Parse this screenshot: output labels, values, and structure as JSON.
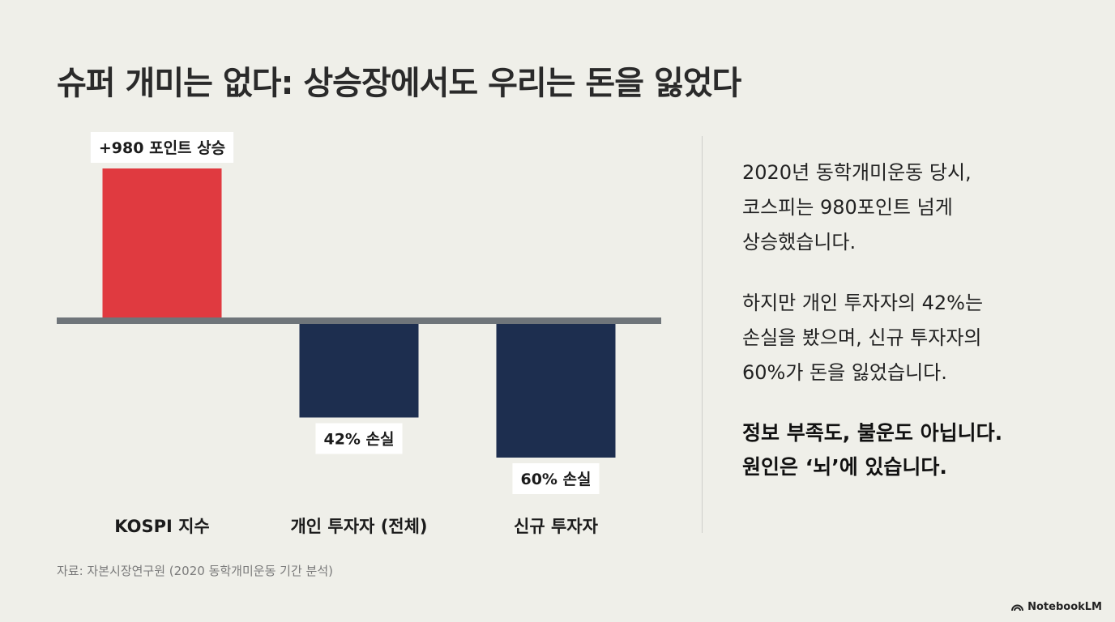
{
  "title": "슈퍼 개미는 없다: 상승장에서도 우리는 돈을 잃었다",
  "chart_data": {
    "type": "bar",
    "categories": [
      "KOSPI 지수",
      "개인 투자자 (전체)",
      "신규 투자자"
    ],
    "values": [
      980,
      -42,
      -60
    ],
    "data_labels": [
      "+980 포인트 상승",
      "42% 손실",
      "60% 손실"
    ],
    "colors": [
      "#e03a40",
      "#1d2e4f",
      "#1d2e4f"
    ],
    "baseline_color": "#6f757a",
    "grid": false
  },
  "side_text": {
    "para1": [
      "2020년 동학개미운동 당시,",
      "코스피는 980포인트 넘게",
      "상승했습니다."
    ],
    "para2": [
      "하지만 개인 투자자의 42%는",
      "손실을 봤으며, 신규 투자자의",
      "60%가 돈을 잃었습니다."
    ],
    "para3": [
      "정보 부족도, 불운도 아닙니다.",
      "원인은 ‘뇌’에 있습니다."
    ]
  },
  "source": "자료: 자본시장연구원 (2020 동학개미운동 기간 분석)",
  "brand": {
    "name": "NotebookLM",
    "icon": "notebooklm-icon"
  }
}
